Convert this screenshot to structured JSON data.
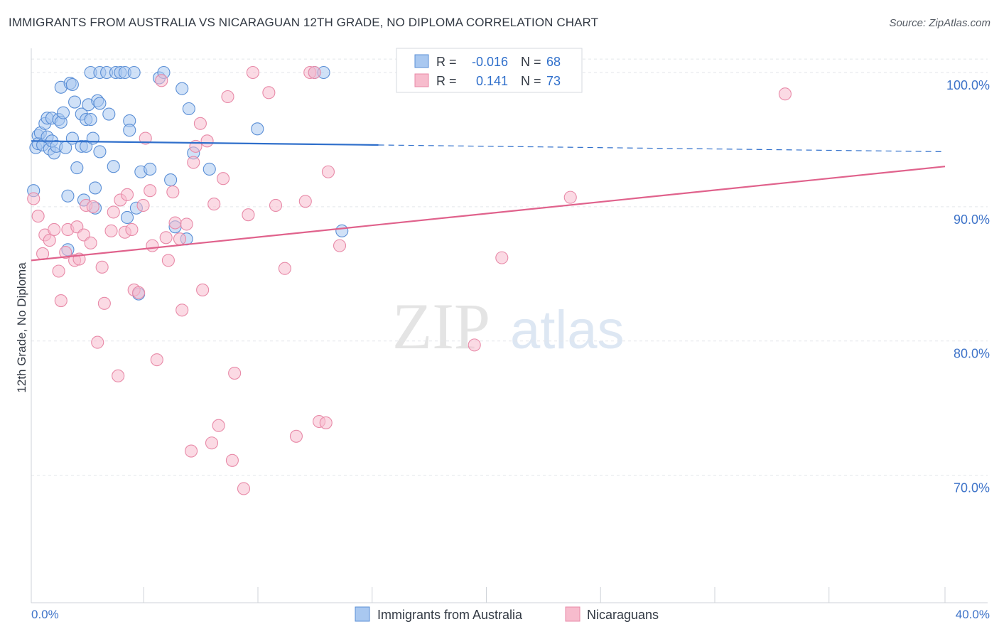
{
  "title": "IMMIGRANTS FROM AUSTRALIA VS NICARAGUAN 12TH GRADE, NO DIPLOMA CORRELATION CHART",
  "source": "Source: ZipAtlas.com",
  "watermark": {
    "zip": "ZIP",
    "atlas": "atlas"
  },
  "legend_box": {
    "rows": [
      {
        "r_label": "R =",
        "r_value": "-0.016",
        "n_label": "N =",
        "n_value": "68"
      },
      {
        "r_label": "R =",
        "r_value": "0.141",
        "n_label": "N =",
        "n_value": "73"
      }
    ]
  },
  "chart_data": {
    "type": "scatter",
    "title": "IMMIGRANTS FROM AUSTRALIA VS NICARAGUAN 12TH GRADE, NO DIPLOMA CORRELATION CHART",
    "xlabel": "",
    "ylabel": "12th Grade, No Diploma",
    "xlim": [
      0,
      40
    ],
    "ylim": [
      60.5,
      101.8
    ],
    "x_tick_labels": [
      "0.0%",
      "40.0%"
    ],
    "y_ticks": [
      70,
      80,
      90,
      100
    ],
    "y_tick_labels": [
      "70.0%",
      "80.0%",
      "90.0%",
      "100.0%"
    ],
    "grid": true,
    "legend_position": "bottom-center",
    "colors": {
      "australia_fill": "#a9c8f0",
      "australia_stroke": "#5b8fd6",
      "australia_line": "#2f6fcb",
      "nicaraguan_fill": "#f7bccd",
      "nicaraguan_stroke": "#e88aa8",
      "nicaraguan_line": "#e0628c",
      "tick_label": "#3f74c9"
    },
    "series": [
      {
        "name": "Immigrants from Australia",
        "trend": {
          "x": [
            0,
            15.2
          ],
          "y": [
            94.9,
            94.6
          ],
          "dashed_x": [
            15.2,
            40
          ],
          "dashed_y": [
            94.6,
            94.1
          ]
        },
        "points": [
          [
            0.1,
            91.2
          ],
          [
            0.2,
            94.4
          ],
          [
            0.3,
            95.3
          ],
          [
            0.3,
            94.7
          ],
          [
            0.4,
            95.5
          ],
          [
            0.5,
            94.6
          ],
          [
            0.6,
            96.2
          ],
          [
            0.7,
            96.6
          ],
          [
            0.7,
            95.2
          ],
          [
            0.8,
            94.3
          ],
          [
            0.9,
            94.9
          ],
          [
            0.9,
            96.6
          ],
          [
            1.0,
            94.0
          ],
          [
            1.1,
            94.5
          ],
          [
            1.2,
            96.5
          ],
          [
            1.3,
            96.3
          ],
          [
            1.3,
            98.9
          ],
          [
            1.4,
            97.0
          ],
          [
            1.5,
            94.4
          ],
          [
            1.6,
            90.8
          ],
          [
            1.6,
            86.8
          ],
          [
            1.7,
            99.2
          ],
          [
            1.8,
            99.1
          ],
          [
            1.8,
            95.1
          ],
          [
            1.9,
            97.8
          ],
          [
            2.0,
            92.9
          ],
          [
            2.2,
            94.5
          ],
          [
            2.2,
            96.9
          ],
          [
            2.3,
            90.5
          ],
          [
            2.4,
            96.5
          ],
          [
            2.4,
            94.5
          ],
          [
            2.5,
            97.6
          ],
          [
            2.6,
            96.5
          ],
          [
            2.6,
            100.0
          ],
          [
            2.7,
            95.1
          ],
          [
            2.8,
            91.4
          ],
          [
            2.8,
            89.9
          ],
          [
            2.9,
            97.9
          ],
          [
            3.0,
            97.7
          ],
          [
            3.0,
            100.0
          ],
          [
            3.0,
            94.1
          ],
          [
            3.3,
            100.0
          ],
          [
            3.4,
            96.9
          ],
          [
            3.6,
            93.0
          ],
          [
            3.7,
            100.0
          ],
          [
            3.9,
            100.0
          ],
          [
            4.1,
            100.0
          ],
          [
            4.2,
            89.2
          ],
          [
            4.3,
            96.4
          ],
          [
            4.3,
            95.7
          ],
          [
            4.5,
            100.0
          ],
          [
            4.6,
            89.9
          ],
          [
            4.7,
            83.5
          ],
          [
            4.8,
            92.6
          ],
          [
            5.2,
            92.8
          ],
          [
            5.6,
            99.6
          ],
          [
            5.8,
            100.0
          ],
          [
            6.1,
            92.0
          ],
          [
            6.3,
            88.5
          ],
          [
            6.6,
            98.8
          ],
          [
            6.8,
            87.6
          ],
          [
            6.9,
            97.3
          ],
          [
            7.1,
            94.0
          ],
          [
            7.8,
            92.8
          ],
          [
            9.9,
            95.8
          ],
          [
            12.4,
            100.0
          ],
          [
            12.8,
            100.0
          ],
          [
            13.6,
            88.2
          ]
        ]
      },
      {
        "name": "Nicaraguans",
        "trend": {
          "x": [
            0,
            40
          ],
          "y": [
            86.0,
            93.0
          ]
        },
        "points": [
          [
            0.1,
            90.6
          ],
          [
            0.3,
            89.3
          ],
          [
            0.5,
            86.5
          ],
          [
            0.6,
            87.9
          ],
          [
            0.8,
            87.5
          ],
          [
            1.0,
            88.3
          ],
          [
            1.2,
            85.2
          ],
          [
            1.3,
            83.0
          ],
          [
            1.5,
            86.6
          ],
          [
            1.6,
            88.3
          ],
          [
            1.9,
            86.0
          ],
          [
            2.0,
            88.5
          ],
          [
            2.1,
            86.1
          ],
          [
            2.3,
            87.9
          ],
          [
            2.4,
            90.1
          ],
          [
            2.6,
            87.3
          ],
          [
            2.7,
            90.0
          ],
          [
            2.9,
            79.9
          ],
          [
            3.1,
            85.5
          ],
          [
            3.2,
            82.8
          ],
          [
            3.5,
            88.2
          ],
          [
            3.6,
            89.6
          ],
          [
            3.8,
            77.4
          ],
          [
            3.9,
            90.5
          ],
          [
            4.1,
            88.1
          ],
          [
            4.2,
            90.9
          ],
          [
            4.4,
            88.3
          ],
          [
            4.5,
            83.8
          ],
          [
            4.7,
            83.6
          ],
          [
            4.9,
            90.1
          ],
          [
            5.0,
            95.1
          ],
          [
            5.2,
            91.2
          ],
          [
            5.3,
            87.1
          ],
          [
            5.5,
            78.6
          ],
          [
            5.7,
            99.4
          ],
          [
            5.9,
            87.7
          ],
          [
            6.0,
            86.0
          ],
          [
            6.2,
            91.1
          ],
          [
            6.3,
            88.8
          ],
          [
            6.5,
            87.6
          ],
          [
            6.6,
            82.3
          ],
          [
            6.8,
            88.7
          ],
          [
            7.0,
            71.8
          ],
          [
            7.1,
            93.3
          ],
          [
            7.2,
            94.5
          ],
          [
            7.4,
            96.2
          ],
          [
            7.5,
            83.8
          ],
          [
            7.7,
            94.9
          ],
          [
            7.9,
            72.4
          ],
          [
            8.0,
            90.2
          ],
          [
            8.2,
            73.7
          ],
          [
            8.4,
            92.1
          ],
          [
            8.6,
            98.2
          ],
          [
            8.8,
            71.1
          ],
          [
            8.9,
            77.6
          ],
          [
            9.3,
            69.0
          ],
          [
            9.5,
            89.4
          ],
          [
            9.7,
            100.0
          ],
          [
            10.4,
            98.5
          ],
          [
            10.7,
            90.1
          ],
          [
            11.1,
            85.4
          ],
          [
            11.6,
            72.9
          ],
          [
            12.0,
            90.4
          ],
          [
            12.2,
            100.0
          ],
          [
            12.4,
            100.0
          ],
          [
            12.6,
            74.0
          ],
          [
            12.9,
            73.9
          ],
          [
            13.0,
            92.6
          ],
          [
            13.5,
            87.1
          ],
          [
            19.4,
            79.7
          ],
          [
            20.6,
            86.2
          ],
          [
            21.7,
            100.0
          ],
          [
            23.6,
            90.7
          ],
          [
            33.0,
            98.4
          ]
        ]
      }
    ]
  },
  "bottom_legend": {
    "items": [
      {
        "label": "Immigrants from Australia"
      },
      {
        "label": "Nicaraguans"
      }
    ]
  }
}
